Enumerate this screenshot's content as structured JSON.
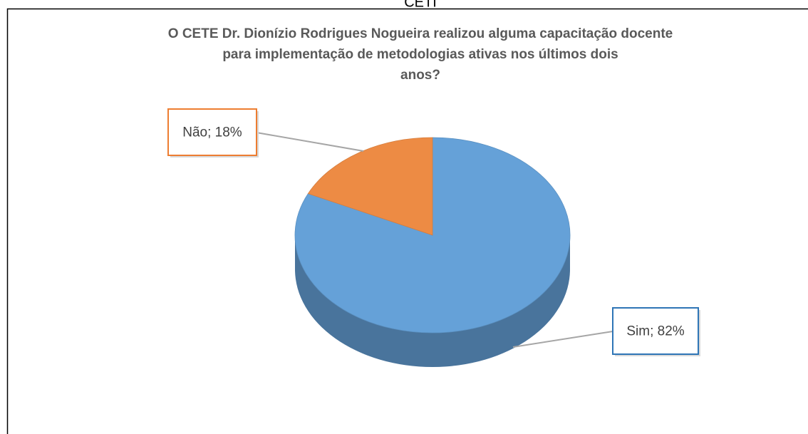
{
  "header": "CETI",
  "chart_data": {
    "type": "pie",
    "title": "O CETE Dr. Dionízio Rodrigues Nogueira realizou alguma capacitação docente para implementação de metodologias ativas nos últimos dois anos?",
    "values": [
      82,
      18
    ],
    "value_labels": [
      "Sim; 82%",
      "Não; 18%"
    ],
    "colors": [
      "#65a1d8",
      "#ed8b44"
    ]
  }
}
